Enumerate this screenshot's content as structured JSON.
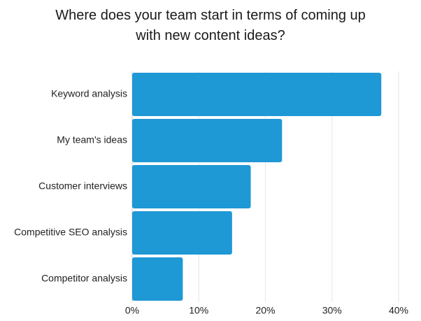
{
  "chart_data": {
    "type": "bar",
    "orientation": "horizontal",
    "title": "Where does your team start in terms of coming up\nwith new content ideas?",
    "categories": [
      "Keyword analysis",
      "My team's ideas",
      "Customer interviews",
      "Competitive SEO analysis",
      "Competitor analysis"
    ],
    "values": [
      37.4,
      22.5,
      17.8,
      15.0,
      7.6
    ],
    "xlim": [
      0,
      40
    ],
    "x_ticks": [
      "0%",
      "10%",
      "20%",
      "30%",
      "40%"
    ],
    "xlabel": "",
    "ylabel": "",
    "grid": true,
    "bar_color": "#1f98d6",
    "grid_color": "#e6e6e6"
  }
}
